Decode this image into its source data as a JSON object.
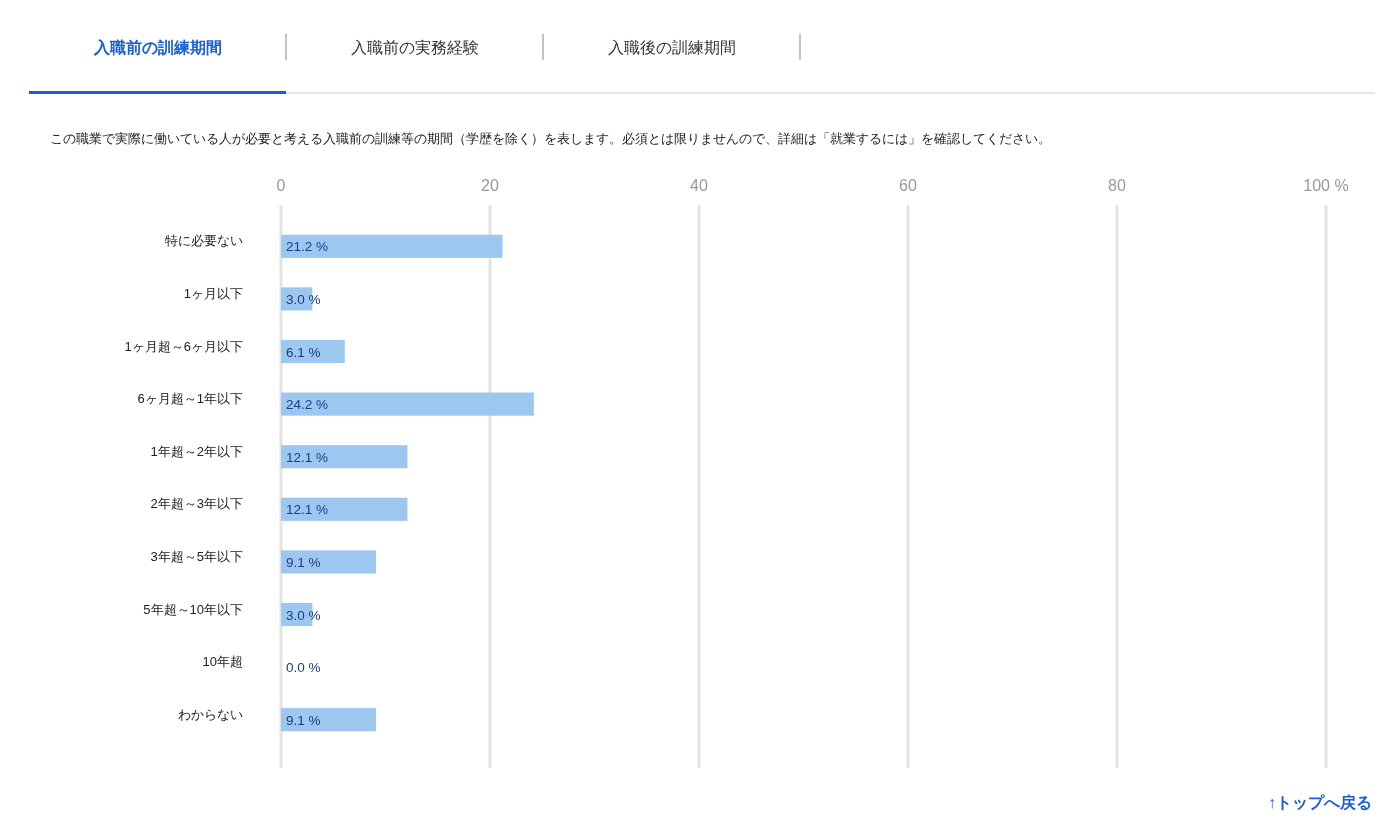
{
  "chart_data": {
    "type": "bar",
    "orientation": "horizontal",
    "title": "入職前の訓練期間",
    "subtitle": "この職業で実際に働いている人が必要と考える入職前の訓練等の期間（学歴を除く）を表します。必須とは限りませんので、詳細は「就業するには」を確認してください。",
    "annotations": [
      "入職前の実務経験",
      "入職後の訓練期間",
      "↑トップへ戻る"
    ],
    "categories": [
      "特に必要ない",
      "1ヶ月以下",
      "1ヶ月超～6ヶ月以下",
      "6ヶ月超～1年以下",
      "1年超～2年以下",
      "2年超～3年以下",
      "3年超～5年以下",
      "5年超～10年以下",
      "10年超",
      "わからない"
    ],
    "values": [
      21.2,
      3.0,
      6.1,
      24.2,
      12.1,
      12.1,
      9.1,
      3.0,
      0.0,
      9.1
    ],
    "value_labels": [
      "21.2 %",
      "3.0 %",
      "6.1 %",
      "24.2 %",
      "12.1 %",
      "12.1 %",
      "9.1 %",
      "3.0 %",
      "0.0 %",
      "9.1 %"
    ],
    "color": "#9dc7ef",
    "xlim": [
      0,
      100
    ],
    "xticks": [
      0,
      20,
      40,
      60,
      80,
      {
        "value": 100,
        "label": "100 %"
      }
    ],
    "grid": "x"
  }
}
